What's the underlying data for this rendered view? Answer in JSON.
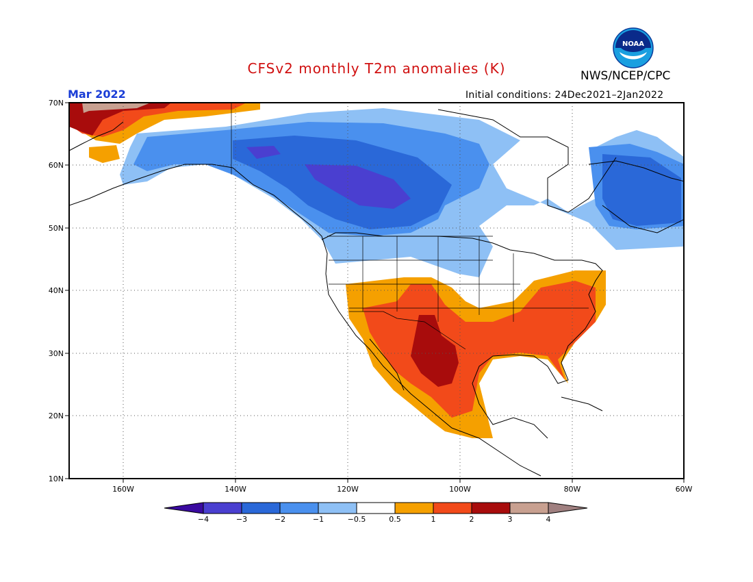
{
  "header": {
    "title": "CFSv2 monthly T2m anomalies (K)",
    "agency": "NWS/NCEP/CPC",
    "month": "Mar 2022",
    "initial_conditions": "Initial conditions: 24Dec2021–2Jan2022",
    "logo_text": "NOAA"
  },
  "map": {
    "lat_labels": [
      "70N",
      "60N",
      "50N",
      "40N",
      "30N",
      "20N",
      "10N"
    ],
    "lon_labels": [
      "160W",
      "140W",
      "120W",
      "100W",
      "80W",
      "60W"
    ]
  },
  "legend": {
    "labels": [
      "−4",
      "−3",
      "−2",
      "−1",
      "−0.5",
      "0.5",
      "1",
      "2",
      "3",
      "4"
    ],
    "colors": {
      "lt_m4": "#3a0aa0",
      "m4_m3": "#4a3fd0",
      "m3_m2": "#2a68d8",
      "m2_m1": "#4a90ee",
      "m1_m05": "#8ec0f5",
      "m05_05": "#ffffff",
      "p05_1": "#f5a000",
      "p1_2": "#f24a1a",
      "p2_3": "#a80c0c",
      "p3_4": "#c8a090",
      "gt_4": "#a08080"
    }
  }
}
